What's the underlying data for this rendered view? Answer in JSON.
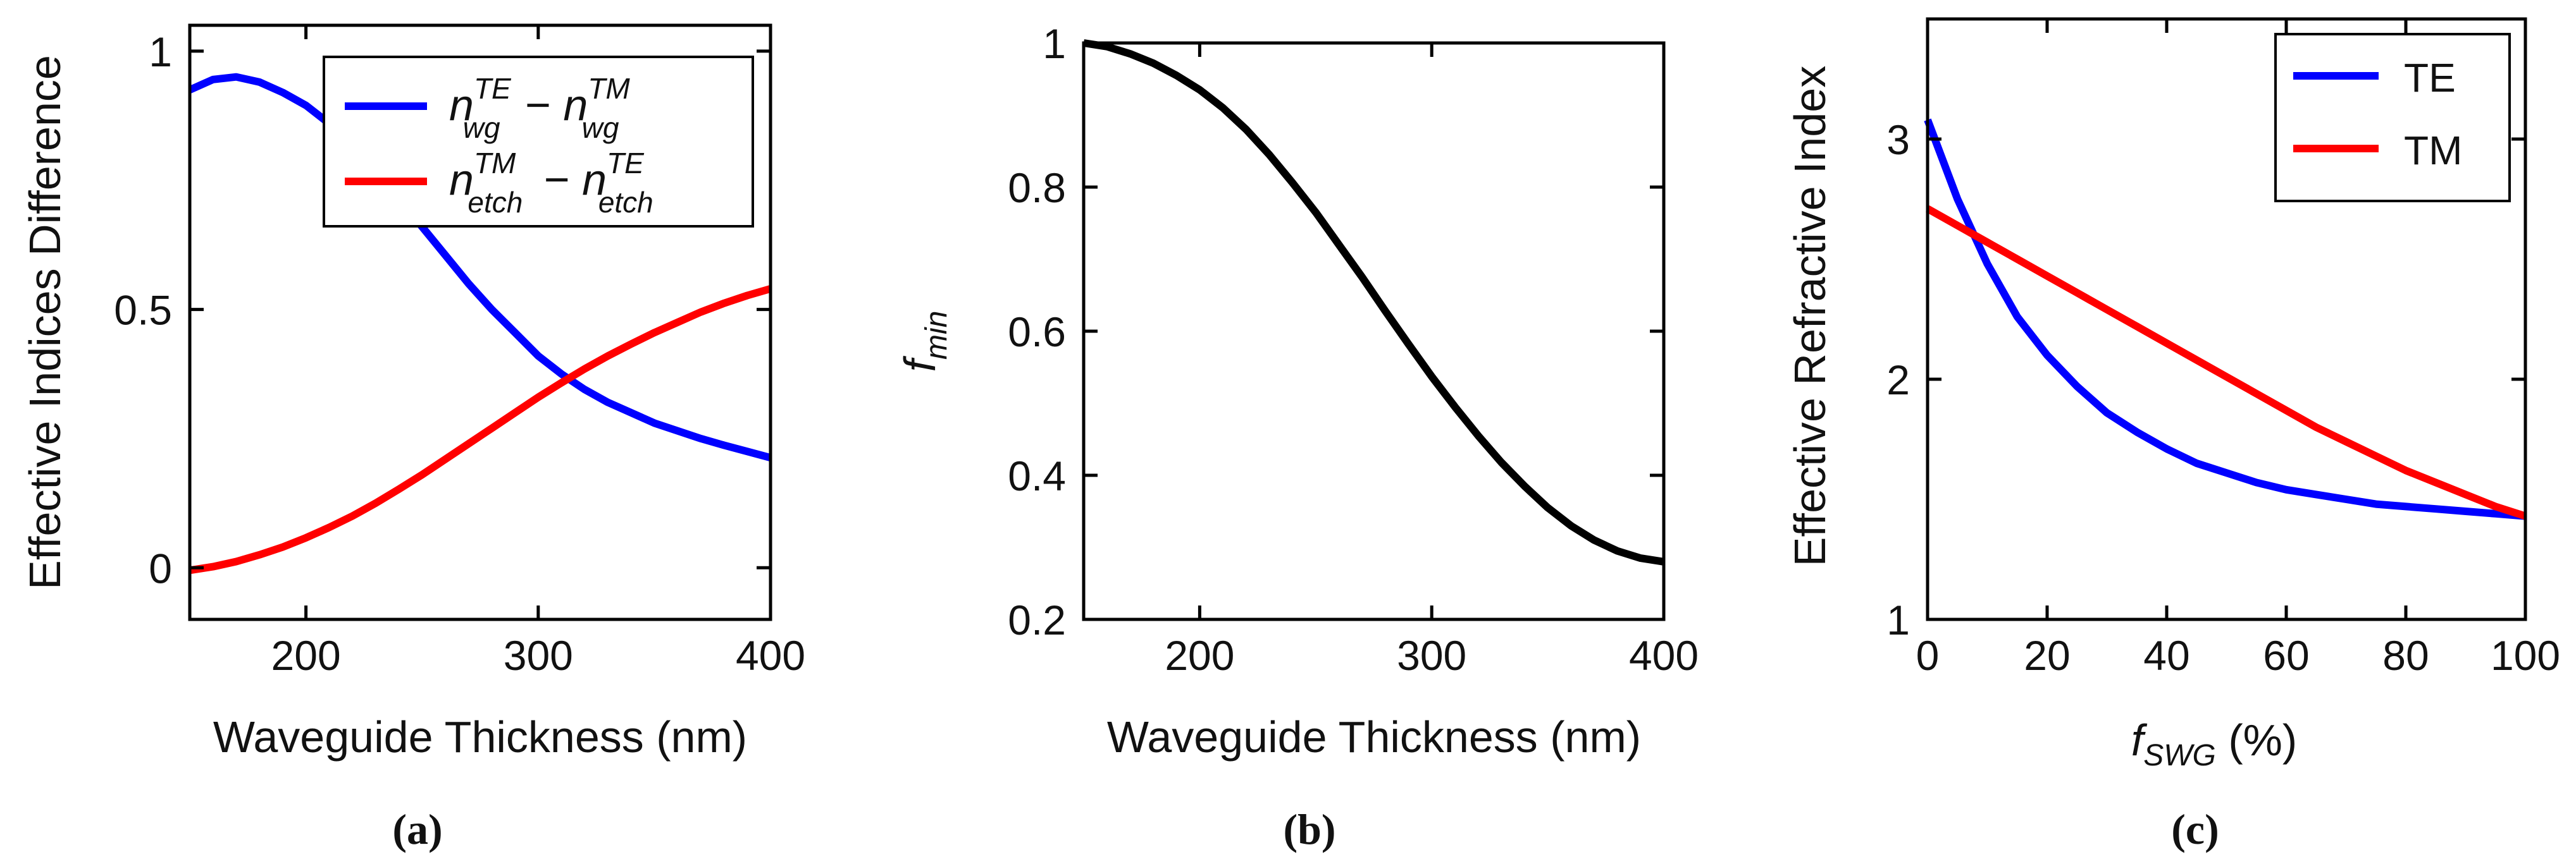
{
  "chart_data": [
    {
      "id": "a",
      "type": "line",
      "panel_label": "(a)",
      "xlabel": "Waveguide Thickness (nm)",
      "ylabel": "Effective Indices Difference",
      "xlim": [
        150,
        400
      ],
      "ylim": [
        -0.1,
        1.05
      ],
      "xticks": [
        200,
        300,
        400
      ],
      "xtick_labels": [
        "200",
        "300",
        "400"
      ],
      "yticks": [
        0,
        0.5,
        1
      ],
      "ytick_labels": [
        "0",
        "0.5",
        "1"
      ],
      "legend_position": "top-right",
      "series": [
        {
          "name": "n_wg^TE - n_wg^TM",
          "legend_parts": [
            "n",
            "TE",
            "wg",
            " − ",
            "n",
            "TM",
            "wg"
          ],
          "color": "#0000ff",
          "x": [
            150,
            160,
            170,
            180,
            190,
            200,
            210,
            220,
            230,
            240,
            250,
            260,
            270,
            280,
            290,
            300,
            310,
            320,
            330,
            340,
            350,
            360,
            370,
            380,
            390,
            400
          ],
          "y": [
            0.925,
            0.945,
            0.95,
            0.94,
            0.92,
            0.895,
            0.86,
            0.82,
            0.77,
            0.715,
            0.66,
            0.605,
            0.55,
            0.5,
            0.455,
            0.41,
            0.375,
            0.345,
            0.32,
            0.3,
            0.28,
            0.265,
            0.25,
            0.237,
            0.225,
            0.213
          ]
        },
        {
          "name": "n_etch^TM - n_etch^TE",
          "legend_parts": [
            "n",
            "TM",
            "etch",
            " − ",
            "n",
            "TE",
            "etch"
          ],
          "color": "#ff0000",
          "x": [
            150,
            160,
            170,
            180,
            190,
            200,
            210,
            220,
            230,
            240,
            250,
            260,
            270,
            280,
            290,
            300,
            310,
            320,
            330,
            340,
            350,
            360,
            370,
            380,
            390,
            400
          ],
          "y": [
            -0.005,
            0.002,
            0.012,
            0.025,
            0.04,
            0.058,
            0.078,
            0.1,
            0.125,
            0.152,
            0.18,
            0.21,
            0.24,
            0.27,
            0.3,
            0.33,
            0.358,
            0.385,
            0.41,
            0.433,
            0.455,
            0.475,
            0.495,
            0.512,
            0.527,
            0.54
          ]
        }
      ]
    },
    {
      "id": "b",
      "type": "line",
      "panel_label": "(b)",
      "xlabel": "Waveguide Thickness (nm)",
      "ylabel": "f_min",
      "ylabel_parts": [
        "f",
        "min"
      ],
      "xlim": [
        150,
        400
      ],
      "ylim": [
        0.2,
        1.0
      ],
      "xticks": [
        200,
        300,
        400
      ],
      "xtick_labels": [
        "200",
        "300",
        "400"
      ],
      "yticks": [
        0.2,
        0.4,
        0.6,
        0.8,
        1.0
      ],
      "ytick_labels": [
        "0.2",
        "0.4",
        "0.6",
        "0.8",
        "1"
      ],
      "series": [
        {
          "name": "f_min",
          "color": "#000000",
          "x": [
            150,
            160,
            170,
            180,
            190,
            200,
            210,
            220,
            230,
            240,
            250,
            260,
            270,
            280,
            290,
            300,
            310,
            320,
            330,
            340,
            350,
            360,
            370,
            380,
            390,
            400
          ],
          "y": [
            1.0,
            0.995,
            0.985,
            0.972,
            0.955,
            0.935,
            0.91,
            0.88,
            0.845,
            0.806,
            0.765,
            0.72,
            0.675,
            0.628,
            0.582,
            0.537,
            0.495,
            0.455,
            0.418,
            0.385,
            0.355,
            0.33,
            0.31,
            0.295,
            0.285,
            0.28
          ]
        }
      ]
    },
    {
      "id": "c",
      "type": "line",
      "panel_label": "(c)",
      "xlabel": "f_SWG (%)",
      "xlabel_parts": [
        "f",
        "SWG",
        " (%)"
      ],
      "ylabel": "Effective Refractive Index",
      "xlim": [
        0,
        100
      ],
      "ylim": [
        1.0,
        3.5
      ],
      "xticks": [
        0,
        20,
        40,
        60,
        80,
        100
      ],
      "xtick_labels": [
        "0",
        "20",
        "40",
        "60",
        "80",
        "100"
      ],
      "yticks": [
        1,
        2,
        3
      ],
      "ytick_labels": [
        "1",
        "2",
        "3"
      ],
      "legend_position": "top-right",
      "series": [
        {
          "name": "TE",
          "color": "#0000ff",
          "x": [
            0,
            5,
            10,
            15,
            20,
            25,
            30,
            35,
            40,
            45,
            50,
            55,
            60,
            65,
            70,
            75,
            80,
            85,
            90,
            95,
            100
          ],
          "y": [
            3.08,
            2.75,
            2.48,
            2.26,
            2.1,
            1.97,
            1.86,
            1.78,
            1.71,
            1.65,
            1.61,
            1.57,
            1.54,
            1.52,
            1.5,
            1.48,
            1.47,
            1.46,
            1.45,
            1.44,
            1.43
          ]
        },
        {
          "name": "TM",
          "color": "#ff0000",
          "x": [
            0,
            5,
            10,
            15,
            20,
            25,
            30,
            35,
            40,
            45,
            50,
            55,
            60,
            65,
            70,
            75,
            80,
            85,
            90,
            95,
            100
          ],
          "y": [
            2.71,
            2.64,
            2.57,
            2.5,
            2.43,
            2.36,
            2.29,
            2.22,
            2.15,
            2.08,
            2.01,
            1.94,
            1.87,
            1.8,
            1.74,
            1.68,
            1.62,
            1.57,
            1.52,
            1.47,
            1.43
          ]
        }
      ]
    }
  ]
}
